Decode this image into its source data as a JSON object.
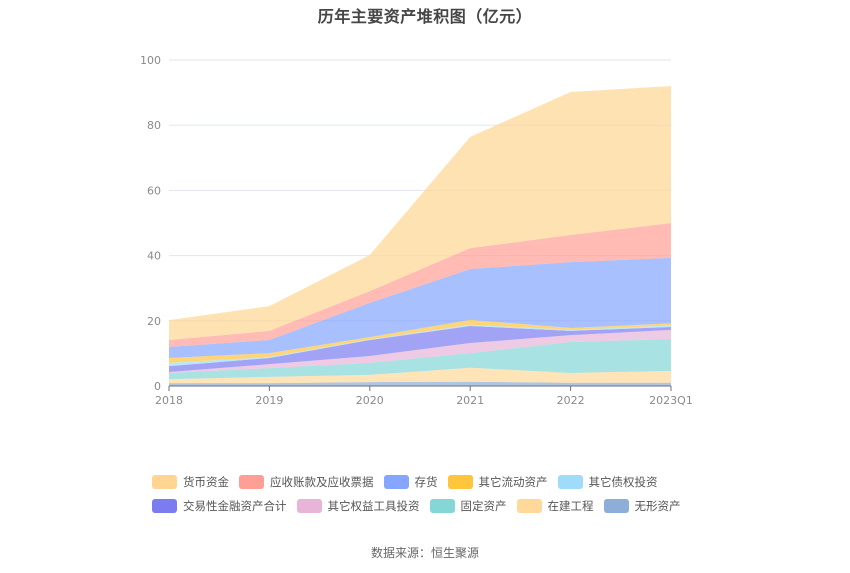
{
  "title": "历年主要资产堆积图（亿元）",
  "source": "数据来源：恒生聚源",
  "chart_data": {
    "type": "area",
    "stacked": true,
    "title": "历年主要资产堆积图（亿元）",
    "xlabel": "",
    "ylabel": "",
    "categories": [
      "2018",
      "2019",
      "2020",
      "2021",
      "2022",
      "2023Q1"
    ],
    "ylim": [
      0,
      100
    ],
    "yticks": [
      0,
      20,
      40,
      60,
      80,
      100
    ],
    "grid": true,
    "legend_position": "bottom",
    "series": [
      {
        "name": "货币资金",
        "color": "#ffd591",
        "values": [
          6.1,
          7.6,
          11.1,
          34.1,
          43.9,
          42.0
        ]
      },
      {
        "name": "应收账款及应收票据",
        "color": "#ff9e94",
        "values": [
          2.1,
          2.8,
          3.6,
          6.4,
          8.3,
          10.7
        ]
      },
      {
        "name": "存货",
        "color": "#85a5ff",
        "values": [
          3.4,
          4.0,
          10.5,
          15.6,
          20.2,
          20.1
        ]
      },
      {
        "name": "其它流动资产",
        "color": "#ffc53d",
        "values": [
          1.5,
          1.2,
          0.7,
          1.5,
          0.6,
          0.6
        ]
      },
      {
        "name": "其它债权投资",
        "color": "#a0dcfa",
        "values": [
          1.0,
          0.3,
          0.2,
          0.4,
          0.3,
          0.5
        ]
      },
      {
        "name": "交易性金融资产合计",
        "color": "#7b7cf0",
        "values": [
          1.8,
          1.9,
          4.9,
          5.2,
          1.3,
          0.9
        ]
      },
      {
        "name": "其它权益工具投资",
        "color": "#e8b4d8",
        "values": [
          0.3,
          1.2,
          2.1,
          3.1,
          2.1,
          2.8
        ]
      },
      {
        "name": "固定资产",
        "color": "#85d6d6",
        "values": [
          1.9,
          2.7,
          3.7,
          4.5,
          9.5,
          9.8
        ]
      },
      {
        "name": "在建工程",
        "color": "#ffd89a",
        "values": [
          1.2,
          1.9,
          2.2,
          4.3,
          3.0,
          3.6
        ]
      },
      {
        "name": "无形资产",
        "color": "#8caed8",
        "values": [
          0.9,
          0.9,
          1.2,
          1.3,
          1.0,
          1.0
        ]
      }
    ]
  }
}
